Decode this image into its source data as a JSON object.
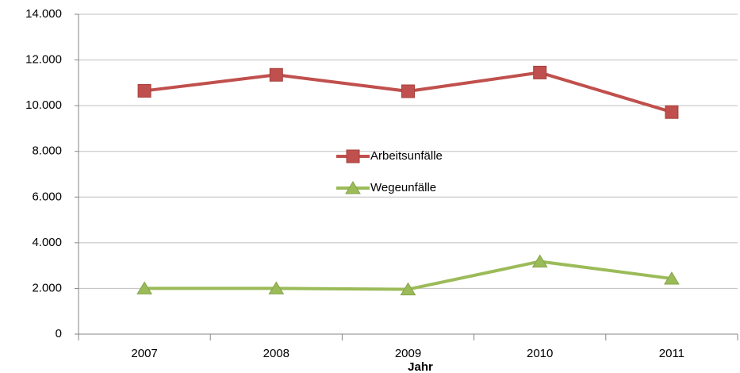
{
  "chart_data": {
    "type": "line",
    "x_label": "Jahr",
    "categories": [
      "2007",
      "2008",
      "2009",
      "2010",
      "2011"
    ],
    "series": [
      {
        "name": "Arbeitsunfälle",
        "color": "#c0504d",
        "marker": "square",
        "values": [
          10650,
          11350,
          10630,
          11450,
          9720
        ]
      },
      {
        "name": "Wegeunfälle",
        "color": "#9bbb59",
        "marker": "triangle",
        "values": [
          2000,
          2000,
          1960,
          3180,
          2430
        ]
      }
    ],
    "ylim": [
      0,
      14000
    ],
    "yticks": [
      0,
      {
        "value": 2000,
        "label": "2.000"
      },
      {
        "value": 4000,
        "label": "4.000"
      },
      {
        "value": 6000,
        "label": "6.000"
      },
      {
        "value": 8000,
        "label": "8.000"
      },
      {
        "value": 10000,
        "label": "10.000"
      },
      {
        "value": 12000,
        "label": "12.000"
      },
      {
        "value": 14000,
        "label": "14.000"
      }
    ],
    "grid": true
  }
}
